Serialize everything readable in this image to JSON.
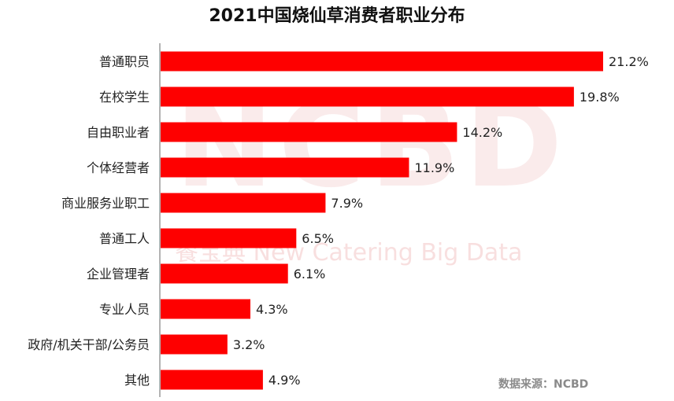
{
  "title": "2021中国烧仙草消费者职业分布",
  "watermark": {
    "brand": "NCBD",
    "cn": "餐宝典",
    "en": "New Catering Big Data"
  },
  "source": "数据来源：NCBD",
  "colors": {
    "bar": "#fe0000",
    "axis": "#9a9a9a",
    "label": "#222222"
  },
  "chart_data": {
    "type": "bar",
    "orientation": "horizontal",
    "title": "2021中国烧仙草消费者职业分布",
    "categories": [
      "普通职员",
      "在校学生",
      "自由职业者",
      "个体经营者",
      "商业服务业职工",
      "普通工人",
      "企业管理者",
      "专业人员",
      "政府/机关干部/公务员",
      "其他"
    ],
    "values": [
      21.2,
      19.8,
      14.2,
      11.9,
      7.9,
      6.5,
      6.1,
      4.3,
      3.2,
      4.9
    ],
    "value_labels": [
      "21.2%",
      "19.8%",
      "14.2%",
      "11.9%",
      "7.9%",
      "6.5%",
      "6.1%",
      "4.3%",
      "3.2%",
      "4.9%"
    ],
    "unit": "%",
    "xlim": [
      0,
      21.2
    ],
    "grid": false,
    "legend": "none"
  }
}
